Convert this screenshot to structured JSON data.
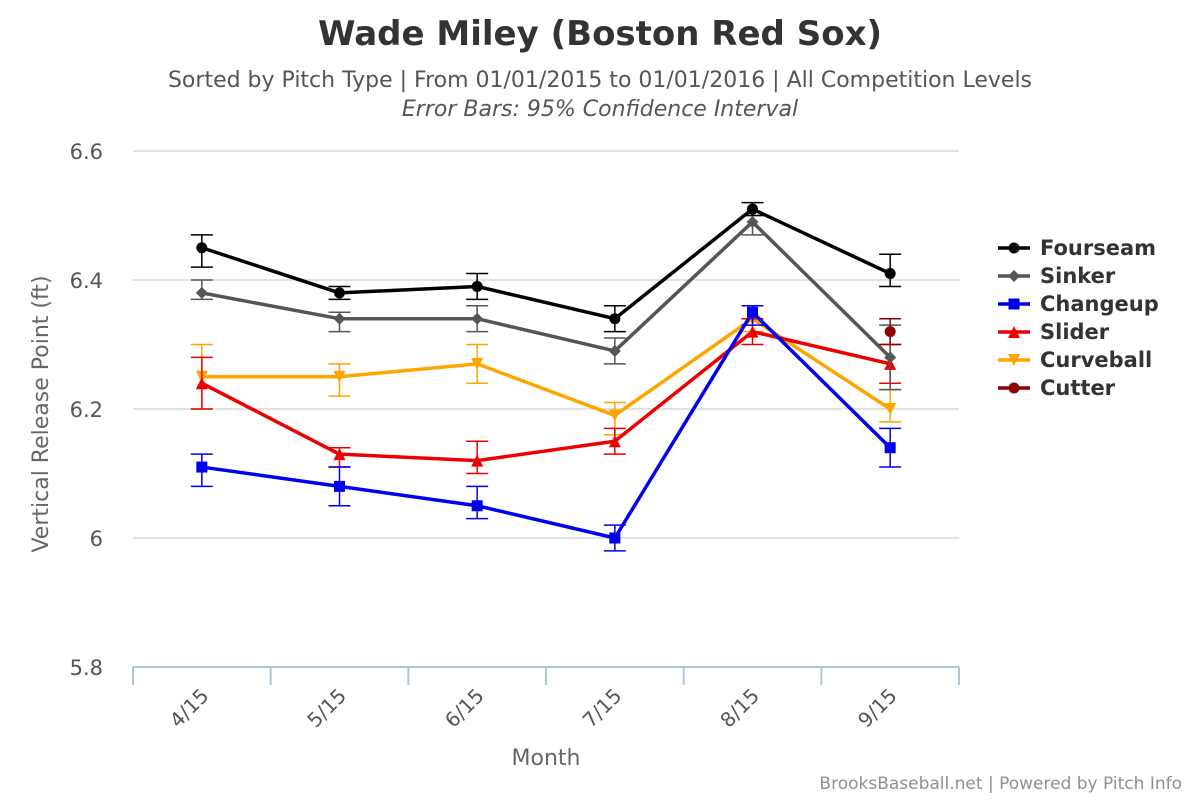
{
  "chart_data": {
    "type": "line",
    "title": "Wade Miley (Boston Red Sox)",
    "subtitle": "Sorted by Pitch Type | From 01/01/2015 to 01/01/2016 | All Competition Levels",
    "subtitle2": "Error Bars: 95% Confidence Interval",
    "xlabel": "Month",
    "ylabel": "Vertical Release Point (ft)",
    "categories": [
      "4/15",
      "5/15",
      "6/15",
      "7/15",
      "8/15",
      "9/15"
    ],
    "ylim": [
      5.8,
      6.6
    ],
    "yticks": [
      5.8,
      6,
      6.2,
      6.4,
      6.6
    ],
    "ytick_labels": [
      "5.8",
      "6",
      "6.2",
      "6.4",
      "6.6"
    ],
    "grid": true,
    "legend_position": "right",
    "series": [
      {
        "name": "Fourseam",
        "color": "#000000",
        "marker": "circle",
        "values": [
          6.45,
          6.38,
          6.39,
          6.34,
          6.51,
          6.41
        ],
        "err_low": [
          6.42,
          6.37,
          6.37,
          6.32,
          6.5,
          6.39
        ],
        "err_high": [
          6.47,
          6.39,
          6.41,
          6.36,
          6.52,
          6.44
        ]
      },
      {
        "name": "Sinker",
        "color": "#555555",
        "marker": "diamond",
        "values": [
          6.38,
          6.34,
          6.34,
          6.29,
          6.49,
          6.28
        ],
        "err_low": [
          6.37,
          6.32,
          6.32,
          6.27,
          6.47,
          6.23
        ],
        "err_high": [
          6.4,
          6.35,
          6.36,
          6.31,
          6.5,
          6.33
        ]
      },
      {
        "name": "Changeup",
        "color": "#0000ee",
        "marker": "square",
        "values": [
          6.11,
          6.08,
          6.05,
          6.0,
          6.35,
          6.14
        ],
        "err_low": [
          6.08,
          6.05,
          6.03,
          5.98,
          6.33,
          6.11
        ],
        "err_high": [
          6.13,
          6.11,
          6.08,
          6.02,
          6.36,
          6.17
        ]
      },
      {
        "name": "Slider",
        "color": "#ee0000",
        "marker": "triangle",
        "values": [
          6.24,
          6.13,
          6.12,
          6.15,
          6.32,
          6.27
        ],
        "err_low": [
          6.2,
          6.11,
          6.1,
          6.13,
          6.3,
          6.24
        ],
        "err_high": [
          6.28,
          6.14,
          6.15,
          6.17,
          6.34,
          6.3
        ]
      },
      {
        "name": "Curveball",
        "color": "#ffa500",
        "marker": "triangle-down",
        "values": [
          6.25,
          6.25,
          6.27,
          6.19,
          6.34,
          6.2
        ],
        "err_low": [
          6.2,
          6.22,
          6.24,
          6.16,
          6.32,
          6.18
        ],
        "err_high": [
          6.3,
          6.27,
          6.3,
          6.21,
          6.36,
          6.23
        ]
      },
      {
        "name": "Cutter",
        "color": "#8b0000",
        "marker": "circle",
        "values": [
          null,
          null,
          null,
          null,
          null,
          6.32
        ],
        "err_low": [
          null,
          null,
          null,
          null,
          null,
          6.3
        ],
        "err_high": [
          null,
          null,
          null,
          null,
          null,
          6.34
        ]
      }
    ]
  },
  "credits": "BrooksBaseball.net | Powered by Pitch Info"
}
